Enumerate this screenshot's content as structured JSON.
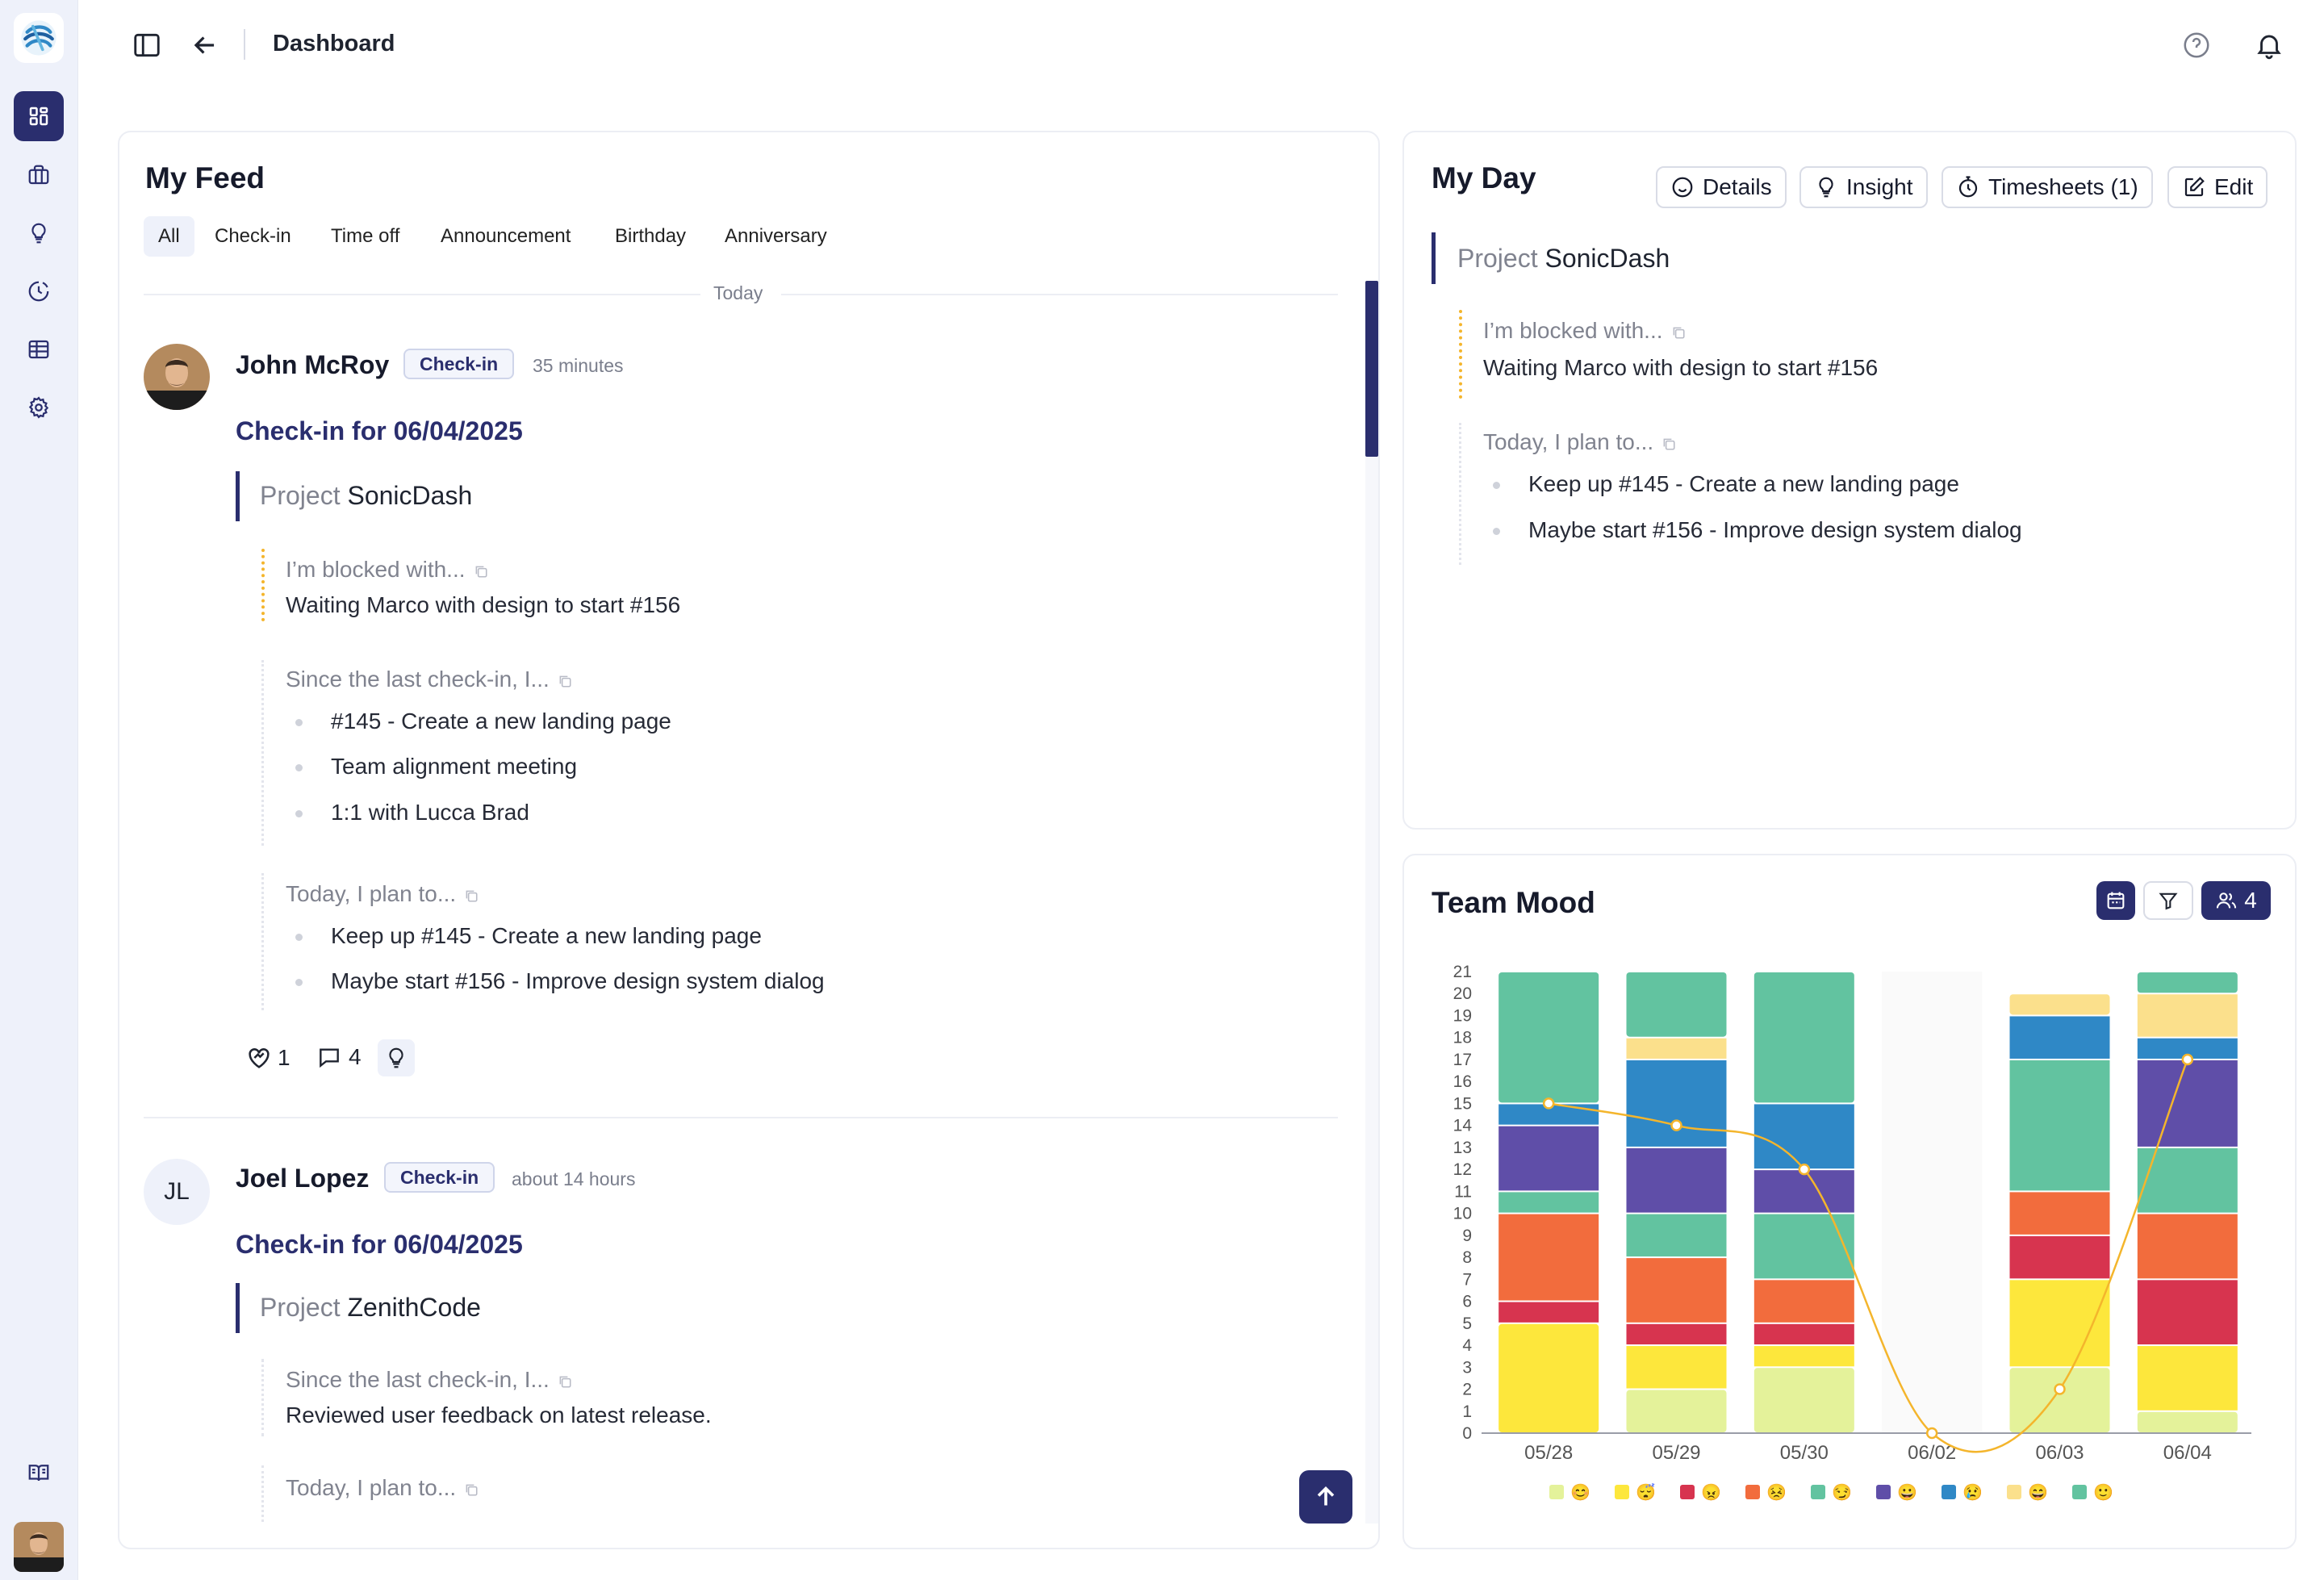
{
  "header": {
    "title": "Dashboard"
  },
  "feed": {
    "title": "My Feed",
    "tabs": [
      "All",
      "Check-in",
      "Time off",
      "Announcement",
      "Birthday",
      "Anniversary"
    ],
    "divider_label": "Today",
    "posts": [
      {
        "name": "John McRoy",
        "badge": "Check-in",
        "time": "35 minutes",
        "checkin_title": "Check-in for 06/04/2025",
        "project_label": "Project",
        "project_name": "SonicDash",
        "blocked_q": "I’m blocked with...",
        "blocked_a": "Waiting Marco with design to start #156",
        "since_q": "Since the last check-in, I...",
        "since_items": [
          "#145 - Create a new landing page",
          "Team alignment meeting",
          "1:1 with Lucca Brad"
        ],
        "plan_q": "Today, I plan to...",
        "plan_items": [
          "Keep up #145 - Create a new landing page",
          "Maybe start #156 - Improve design system dialog"
        ],
        "likes": "1",
        "comments": "4"
      },
      {
        "initials": "JL",
        "name": "Joel Lopez",
        "badge": "Check-in",
        "time": "about 14 hours",
        "checkin_title": "Check-in for 06/04/2025",
        "project_label": "Project",
        "project_name": "ZenithCode",
        "since_q": "Since the last check-in, I...",
        "since_a": "Reviewed user feedback on latest release.",
        "plan_q": "Today, I plan to..."
      }
    ]
  },
  "myday": {
    "title": "My Day",
    "buttons": {
      "details": "Details",
      "insight": "Insight",
      "timesheets": "Timesheets (1)",
      "edit": "Edit"
    },
    "project_label": "Project",
    "project_name": "SonicDash",
    "blocked_q": "I’m blocked with...",
    "blocked_a": "Waiting Marco with design to start #156",
    "plan_q": "Today, I plan to...",
    "plan_items": [
      "Keep up #145 - Create a new landing page",
      "Maybe start #156 - Improve design system dialog"
    ]
  },
  "team_mood": {
    "title": "Team Mood",
    "member_count": "4",
    "legend_emojis": [
      "😊",
      "😴",
      "😠",
      "😣",
      "😏",
      "😀",
      "😢",
      "😄",
      "🙂"
    ]
  },
  "chart_data": {
    "type": "bar",
    "stacked": true,
    "categories": [
      "05/28",
      "05/29",
      "05/30",
      "06/02",
      "06/03",
      "06/04"
    ],
    "ylim": [
      0,
      21
    ],
    "yticks": [
      0,
      1,
      2,
      3,
      4,
      5,
      6,
      7,
      8,
      9,
      10,
      11,
      12,
      13,
      14,
      15,
      16,
      17,
      18,
      19,
      20,
      21
    ],
    "series": [
      {
        "color": "#e4f29a",
        "values": [
          0,
          2,
          3,
          0,
          3,
          1
        ]
      },
      {
        "color": "#fde73c",
        "values": [
          5,
          2,
          1,
          0,
          4,
          3
        ]
      },
      {
        "color": "#d7344f",
        "values": [
          1,
          1,
          1,
          0,
          2,
          3
        ]
      },
      {
        "color": "#f26c3d",
        "values": [
          4,
          3,
          2,
          0,
          2,
          3
        ]
      },
      {
        "color": "#62c3a0",
        "values": [
          1,
          2,
          3,
          0,
          6,
          3
        ]
      },
      {
        "color": "#5f4ea8",
        "values": [
          3,
          3,
          2,
          0,
          0,
          4
        ]
      },
      {
        "color": "#2f88c6",
        "values": [
          1,
          4,
          3,
          0,
          2,
          1
        ]
      },
      {
        "color": "#fbe08c",
        "values": [
          0,
          1,
          0,
          0,
          1,
          2
        ]
      },
      {
        "color": "#62c3a0",
        "values": [
          6,
          3,
          6,
          0,
          0,
          1
        ]
      }
    ],
    "line": {
      "color": "#f4b52c",
      "values": [
        15,
        14,
        12,
        0,
        2,
        17
      ]
    }
  }
}
